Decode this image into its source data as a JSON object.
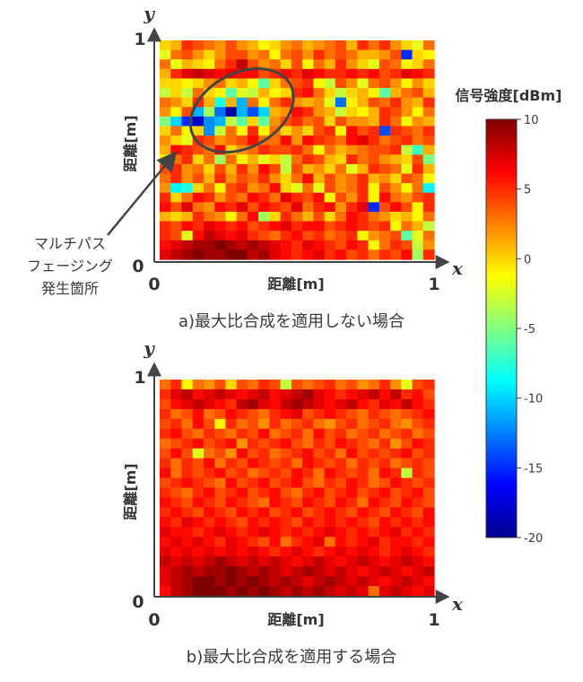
{
  "chart_data": [
    {
      "type": "heatmap",
      "caption": "a)最大比合成を適用しない場合",
      "xlabel": "距離[m]",
      "ylabel": "距離[m]",
      "x_axis_letter": "x",
      "y_axis_letter": "y",
      "xlim": [
        0,
        1
      ],
      "ylim": [
        0,
        1
      ],
      "x_ticks": [
        "0",
        "1"
      ],
      "y_ticks": [
        "0",
        "1"
      ],
      "grid": false,
      "colorscale": "jet",
      "zlim": [
        -20,
        10
      ],
      "annotation": {
        "text_lines": [
          "マルチパス",
          "フェージング",
          "発生箇所"
        ],
        "center": [
          0.3,
          0.68
        ],
        "radii": [
          0.2,
          0.17
        ]
      },
      "values": [
        [
          0,
          1,
          5,
          4,
          3,
          2,
          4,
          2,
          1,
          -1,
          0,
          2,
          3,
          1,
          2,
          3,
          4,
          1,
          5,
          3,
          5,
          2,
          0,
          -2,
          3
        ],
        [
          -2,
          3,
          4,
          2,
          0,
          2,
          4,
          4,
          2,
          3,
          -1,
          3,
          4,
          2,
          5,
          3,
          4,
          3,
          1,
          1,
          2,
          4,
          -15,
          0,
          -1
        ],
        [
          3,
          -2,
          1,
          0,
          -1,
          3,
          5,
          8,
          4,
          2,
          3,
          0,
          4,
          -1,
          3,
          1,
          5,
          2,
          0,
          -2,
          4,
          3,
          -1,
          0,
          3
        ],
        [
          1,
          5,
          7,
          8,
          7,
          6,
          7,
          6,
          6,
          4,
          5,
          6,
          5,
          7,
          6,
          5,
          5,
          6,
          5,
          6,
          4,
          5,
          7,
          6,
          5
        ],
        [
          0,
          0,
          -1,
          0,
          2,
          3,
          0,
          1,
          -1,
          -6,
          0,
          3,
          4,
          5,
          -1,
          -3,
          4,
          2,
          -2,
          3,
          4,
          2,
          -1,
          2,
          0
        ],
        [
          -3,
          0,
          -3,
          3,
          0,
          -1,
          -6,
          -2,
          -3,
          1,
          -1,
          0,
          5,
          6,
          3,
          0,
          -3,
          0,
          1,
          -1,
          -6,
          1,
          3,
          4,
          1
        ],
        [
          3,
          2,
          0,
          5,
          1,
          -8,
          1,
          -11,
          3,
          -1,
          3,
          5,
          2,
          1,
          2,
          -2,
          -13,
          -1,
          1,
          4,
          3,
          5,
          2,
          1,
          5
        ],
        [
          2,
          -1,
          4,
          -11,
          -4,
          -13,
          -19,
          -11,
          -14,
          -10,
          1,
          2,
          6,
          5,
          2,
          1,
          -3,
          0,
          -1,
          1,
          5,
          4,
          2,
          -1,
          3
        ],
        [
          -5,
          -10,
          -15,
          -18,
          -12,
          -11,
          -3,
          -6,
          0,
          -6,
          2,
          4,
          5,
          3,
          4,
          0,
          4,
          2,
          2,
          1,
          5,
          3,
          -1,
          2,
          1
        ],
        [
          0,
          3,
          -1,
          0,
          -12,
          -3,
          3,
          -1,
          5,
          -1,
          3,
          0,
          2,
          0,
          4,
          5,
          -1,
          6,
          4,
          5,
          -14,
          5,
          4,
          3,
          5
        ],
        [
          2,
          0,
          -2,
          5,
          4,
          2,
          3,
          4,
          6,
          3,
          3,
          6,
          2,
          6,
          5,
          4,
          3,
          6,
          7,
          5,
          3,
          4,
          5,
          3,
          4
        ],
        [
          1,
          6,
          5,
          4,
          3,
          6,
          0,
          2,
          3,
          5,
          4,
          4,
          5,
          3,
          -1,
          3,
          1,
          2,
          3,
          4,
          4,
          5,
          -3,
          -7,
          1
        ],
        [
          -1,
          3,
          5,
          0,
          3,
          -4,
          3,
          -1,
          1,
          -2,
          0,
          -3,
          3,
          5,
          4,
          1,
          0,
          5,
          3,
          4,
          2,
          1,
          0,
          4,
          -5
        ],
        [
          4,
          5,
          2,
          3,
          0,
          4,
          1,
          5,
          2,
          6,
          4,
          -3,
          4,
          1,
          2,
          0,
          3,
          -2,
          1,
          5,
          4,
          3,
          -2,
          5,
          1
        ],
        [
          3,
          5,
          2,
          4,
          1,
          5,
          2,
          4,
          3,
          5,
          2,
          0,
          3,
          6,
          1,
          4,
          2,
          3,
          5,
          1,
          2,
          0,
          4,
          3,
          -1
        ],
        [
          2,
          -9,
          -8,
          0,
          3,
          -1,
          4,
          5,
          2,
          3,
          6,
          0,
          -2,
          3,
          -2,
          4,
          2,
          3,
          5,
          -1,
          4,
          2,
          -1,
          3,
          -9
        ],
        [
          5,
          0,
          3,
          6,
          5,
          2,
          4,
          3,
          6,
          5,
          3,
          7,
          5,
          4,
          6,
          -1,
          4,
          2,
          5,
          -1,
          6,
          3,
          2,
          4,
          5
        ],
        [
          6,
          4,
          7,
          3,
          2,
          6,
          5,
          7,
          4,
          6,
          5,
          4,
          7,
          3,
          5,
          6,
          2,
          5,
          7,
          -15,
          4,
          6,
          4,
          -1,
          5
        ],
        [
          1,
          0,
          1,
          5,
          3,
          2,
          -1,
          3,
          6,
          -4,
          0,
          5,
          3,
          1,
          4,
          0,
          3,
          6,
          5,
          3,
          2,
          0,
          1,
          -1,
          3
        ],
        [
          5,
          4,
          6,
          5,
          7,
          6,
          5,
          6,
          4,
          5,
          6,
          7,
          5,
          6,
          6,
          4,
          5,
          6,
          5,
          4,
          5,
          -1,
          3,
          1,
          -3
        ],
        [
          5,
          4,
          -2,
          6,
          8,
          7,
          6,
          7,
          5,
          4,
          3,
          5,
          6,
          4,
          5,
          3,
          4,
          5,
          -1,
          2,
          3,
          4,
          -6,
          -2,
          3
        ],
        [
          6,
          7,
          8,
          9,
          9,
          10,
          9,
          8,
          9,
          8,
          7,
          6,
          5,
          7,
          6,
          5,
          4,
          6,
          5,
          -1,
          3,
          5,
          4,
          -3,
          2
        ],
        [
          7,
          8,
          9,
          10,
          9,
          9,
          10,
          10,
          8,
          9,
          7,
          6,
          5,
          6,
          7,
          5,
          6,
          4,
          5,
          3,
          5,
          4,
          6,
          -4,
          5
        ]
      ]
    },
    {
      "type": "heatmap",
      "caption": "b)最大比合成を適用する場合",
      "xlabel": "距離[m]",
      "ylabel": "距離[m]",
      "x_axis_letter": "x",
      "y_axis_letter": "y",
      "xlim": [
        0,
        1
      ],
      "ylim": [
        0,
        1
      ],
      "x_ticks": [
        "0",
        "1"
      ],
      "y_ticks": [
        "0",
        "1"
      ],
      "grid": false,
      "colorscale": "jet",
      "zlim": [
        -20,
        10
      ],
      "values": [
        [
          3,
          5,
          -1,
          3,
          2,
          4,
          0,
          4,
          3,
          5,
          4,
          -3,
          4,
          3,
          4,
          5,
          3,
          4,
          2,
          3,
          5,
          2,
          -2,
          4,
          5
        ],
        [
          5,
          7,
          8,
          6,
          7,
          8,
          7,
          6,
          7,
          8,
          6,
          7,
          8,
          9,
          7,
          6,
          5,
          6,
          7,
          8,
          6,
          8,
          5,
          6,
          4
        ],
        [
          4,
          6,
          7,
          8,
          7,
          6,
          5,
          8,
          9,
          7,
          6,
          8,
          9,
          8,
          7,
          6,
          7,
          8,
          6,
          5,
          7,
          6,
          8,
          6,
          5
        ],
        [
          5,
          3,
          4,
          6,
          3,
          4,
          6,
          5,
          4,
          3,
          5,
          6,
          7,
          4,
          5,
          6,
          5,
          4,
          3,
          5,
          4,
          3,
          4,
          5,
          6
        ],
        [
          4,
          5,
          3,
          6,
          4,
          -1,
          5,
          3,
          4,
          2,
          5,
          3,
          4,
          5,
          3,
          2,
          4,
          5,
          3,
          4,
          5,
          3,
          2,
          4,
          5
        ],
        [
          5,
          6,
          4,
          3,
          5,
          4,
          3,
          5,
          4,
          6,
          3,
          4,
          5,
          3,
          6,
          4,
          5,
          3,
          4,
          5,
          3,
          4,
          5,
          3,
          4
        ],
        [
          3,
          4,
          5,
          6,
          4,
          5,
          6,
          2,
          5,
          4,
          5,
          6,
          4,
          3,
          5,
          4,
          6,
          5,
          4,
          3,
          5,
          2,
          4,
          6,
          5
        ],
        [
          4,
          6,
          4,
          -2,
          3,
          4,
          2,
          6,
          4,
          5,
          3,
          4,
          5,
          6,
          4,
          5,
          3,
          6,
          4,
          5,
          4,
          5,
          6,
          4,
          5
        ],
        [
          5,
          3,
          5,
          4,
          6,
          3,
          5,
          4,
          6,
          5,
          4,
          5,
          3,
          6,
          5,
          4,
          5,
          3,
          5,
          4,
          5,
          3,
          4,
          5,
          4
        ],
        [
          6,
          3,
          5,
          4,
          5,
          6,
          4,
          5,
          3,
          4,
          5,
          4,
          6,
          5,
          3,
          6,
          5,
          4,
          5,
          3,
          6,
          5,
          -3,
          5,
          4
        ],
        [
          4,
          5,
          6,
          5,
          4,
          3,
          6,
          4,
          5,
          6,
          4,
          5,
          6,
          4,
          3,
          5,
          4,
          6,
          5,
          3,
          4,
          6,
          5,
          4,
          5
        ],
        [
          5,
          4,
          3,
          5,
          6,
          4,
          5,
          6,
          4,
          5,
          6,
          4,
          3,
          5,
          6,
          4,
          5,
          6,
          4,
          5,
          6,
          4,
          5,
          6,
          4
        ],
        [
          6,
          5,
          4,
          6,
          5,
          4,
          6,
          5,
          4,
          3,
          6,
          5,
          4,
          6,
          5,
          4,
          6,
          5,
          3,
          6,
          5,
          4,
          6,
          5,
          4
        ],
        [
          5,
          6,
          5,
          4,
          6,
          5,
          4,
          6,
          5,
          6,
          4,
          5,
          6,
          4,
          5,
          6,
          5,
          4,
          6,
          5,
          4,
          6,
          5,
          4,
          6
        ],
        [
          6,
          5,
          7,
          6,
          5,
          6,
          5,
          4,
          6,
          5,
          6,
          5,
          4,
          6,
          5,
          6,
          5,
          6,
          5,
          4,
          6,
          5,
          6,
          5,
          6
        ],
        [
          7,
          6,
          6,
          5,
          6,
          7,
          6,
          5,
          6,
          7,
          6,
          5,
          6,
          5,
          6,
          7,
          6,
          5,
          6,
          5,
          6,
          7,
          5,
          6,
          5
        ],
        [
          6,
          7,
          6,
          7,
          6,
          5,
          7,
          6,
          5,
          4,
          6,
          3,
          5,
          6,
          7,
          3,
          6,
          5,
          6,
          7,
          5,
          6,
          6,
          5,
          6
        ],
        [
          7,
          6,
          7,
          6,
          7,
          6,
          7,
          6,
          7,
          6,
          5,
          6,
          7,
          6,
          5,
          6,
          7,
          6,
          7,
          6,
          5,
          6,
          7,
          6,
          5
        ],
        [
          8,
          7,
          8,
          7,
          8,
          9,
          8,
          7,
          8,
          7,
          8,
          7,
          6,
          7,
          8,
          7,
          6,
          7,
          8,
          7,
          6,
          7,
          8,
          7,
          6
        ],
        [
          7,
          8,
          9,
          8,
          9,
          9,
          10,
          9,
          8,
          9,
          8,
          7,
          8,
          9,
          8,
          7,
          8,
          7,
          6,
          7,
          8,
          7,
          6,
          7,
          8
        ],
        [
          7,
          8,
          9,
          10,
          10,
          9,
          10,
          9,
          10,
          9,
          8,
          9,
          8,
          7,
          8,
          9,
          8,
          7,
          8,
          7,
          6,
          7,
          8,
          7,
          6
        ],
        [
          6,
          8,
          9,
          10,
          10,
          10,
          9,
          10,
          9,
          10,
          9,
          8,
          9,
          8,
          9,
          8,
          7,
          8,
          7,
          3,
          7,
          8,
          7,
          6,
          7
        ]
      ]
    }
  ],
  "colorbar": {
    "title": "信号強度[dBm]",
    "ticks": [
      "10",
      "5",
      "0",
      "-5",
      "-10",
      "-15",
      "-20"
    ],
    "min": -20,
    "max": 10
  }
}
